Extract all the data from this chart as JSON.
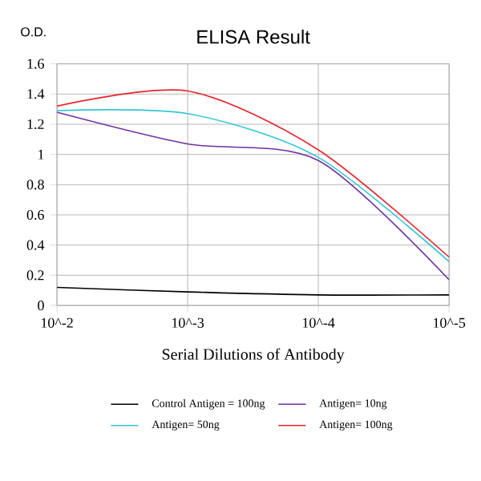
{
  "chart_data": {
    "type": "line",
    "title": "ELISA Result",
    "ylabel": "O.D.",
    "xlabel": "Serial Dilutions of Antibody",
    "categories": [
      "10^-2",
      "10^-3",
      "10^-4",
      "10^-5"
    ],
    "series": [
      {
        "name": "Control Antigen = 100ng",
        "color": "#000000",
        "values": [
          0.12,
          0.09,
          0.07,
          0.07
        ]
      },
      {
        "name": "Antigen= 10ng",
        "color": "#7030a0",
        "values": [
          1.28,
          1.07,
          0.96,
          0.17
        ]
      },
      {
        "name": "Antigen= 50ng",
        "color": "#33c6d6",
        "values": [
          1.29,
          1.27,
          0.98,
          0.29
        ]
      },
      {
        "name": "Antigen= 100ng",
        "color": "#e8242c",
        "values": [
          1.32,
          1.42,
          1.03,
          0.32
        ]
      }
    ],
    "ylim": [
      0,
      1.6
    ],
    "yticks": [
      0,
      0.2,
      0.4,
      0.6,
      0.8,
      1,
      1.2,
      1.4,
      1.6
    ],
    "grid": true,
    "legend": "bottom",
    "marker": "none",
    "line_style": "solid"
  }
}
